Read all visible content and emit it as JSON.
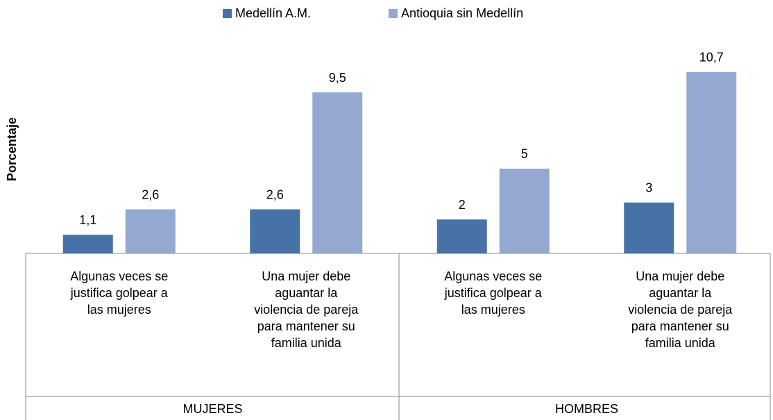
{
  "chart_data": {
    "type": "bar",
    "y_label": "Porcentaje",
    "categories": [
      "Algunas veces se justifica golpear a las mujeres",
      "Una mujer debe aguantar la violencia de pareja para mantener su familia unida",
      "Algunas veces se justifica golpear a las mujeres",
      "Una mujer debe aguantar la violencia de pareja para mantener su familia unida"
    ],
    "groups": [
      "MUJERES",
      "HOMBRES"
    ],
    "series": [
      {
        "name": "Medellín A.M.",
        "color": "#4672a8",
        "values": [
          1.1,
          2.6,
          2,
          3
        ],
        "value_labels": [
          "1,1",
          "2,6",
          "2",
          "3"
        ]
      },
      {
        "name": "Antioquia sin Medellín",
        "color": "#93a9d1",
        "values": [
          2.6,
          9.5,
          5,
          10.7
        ],
        "value_labels": [
          "2,6",
          "9,5",
          "5",
          "10,7"
        ]
      }
    ],
    "ylim": [
      0,
      12
    ],
    "legend": "top"
  }
}
